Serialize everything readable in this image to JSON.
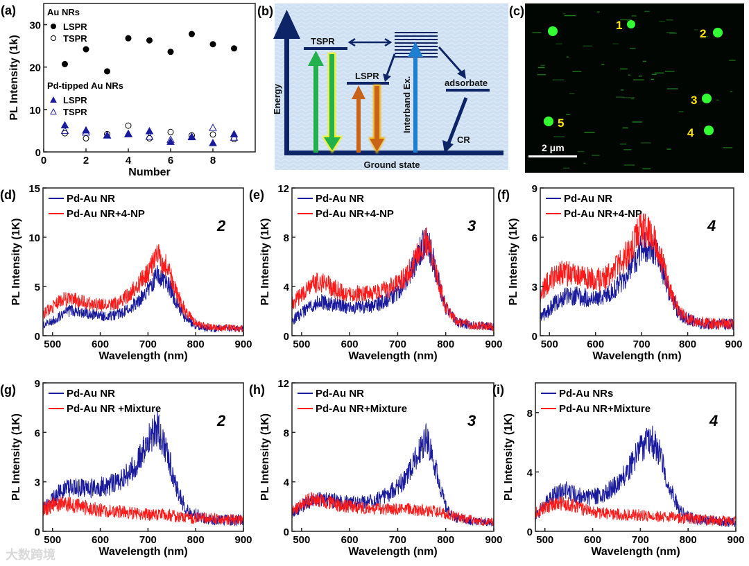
{
  "watermark": "大数跨境",
  "colors": {
    "blue": "#1a1a9c",
    "red": "#ff1a1a",
    "navy": "#0d2466",
    "green_spot": "#33ff33",
    "panel_b_bg": "#cfe0f3"
  },
  "panel_b": {
    "label": "(b)",
    "energy": "Energy",
    "tspr": "TSPR",
    "lspr": "LSPR",
    "interband": "Interband Ex.",
    "adsorbate": "adsorbate",
    "cr": "CR",
    "ground": "Ground state"
  },
  "panel_c": {
    "label": "(c)",
    "spots": [
      "1",
      "2",
      "3",
      "4",
      "5"
    ],
    "scale_bar": "2 μm"
  },
  "chart_data": [
    {
      "id": "a",
      "label": "(a)",
      "type": "scatter",
      "xlabel": "Number",
      "ylabel": "PL Intensity (1k)",
      "xlim": [
        0,
        10
      ],
      "ylim": [
        0,
        35
      ],
      "xticks": [
        0,
        2,
        4,
        6,
        8
      ],
      "yticks": [
        0,
        10,
        20,
        30
      ],
      "legend_groups": [
        {
          "title": "Au NRs",
          "entries": [
            "LSPR",
            "TSPR"
          ]
        },
        {
          "title": "Pd-tipped Au NRs",
          "entries": [
            "LSPR",
            "TSPR"
          ]
        }
      ],
      "series": [
        {
          "name": "Au NRs LSPR",
          "marker": "filled-circle",
          "color": "#000000",
          "x": [
            1,
            2,
            3,
            4,
            5,
            6,
            7,
            8,
            9
          ],
          "y": [
            20.7,
            24.2,
            19.0,
            26.8,
            26.3,
            23.6,
            27.8,
            25.4,
            24.4
          ]
        },
        {
          "name": "Au NRs TSPR",
          "marker": "open-circle",
          "color": "#000000",
          "x": [
            1,
            2,
            3,
            4,
            5,
            6,
            7,
            8,
            9
          ],
          "y": [
            4.4,
            3.2,
            4.2,
            6.2,
            3.2,
            4.7,
            3.9,
            4.1,
            3.0
          ]
        },
        {
          "name": "Pd-tipped Au NRs LSPR",
          "marker": "filled-triangle",
          "color": "#1a1a9c",
          "x": [
            1,
            2,
            3,
            4,
            5,
            6,
            7,
            8,
            9
          ],
          "y": [
            6.3,
            5.1,
            3.9,
            4.3,
            4.9,
            2.4,
            3.5,
            2.1,
            4.2
          ]
        },
        {
          "name": "Pd-tipped Au NRs TSPR",
          "marker": "open-triangle",
          "color": "#1a1a9c",
          "x": [
            1,
            2,
            3,
            4,
            5,
            6,
            7,
            8,
            9
          ],
          "y": [
            5.0,
            4.6,
            3.9,
            4.2,
            3.6,
            2.9,
            3.6,
            5.7,
            3.4
          ]
        }
      ]
    },
    {
      "id": "d",
      "label": "(d)",
      "type": "line",
      "tag": "2",
      "xlabel": "Wavelength (nm)",
      "ylabel": "PL Intensity (1K)",
      "xlim": [
        480,
        900
      ],
      "ylim": [
        0,
        15
      ],
      "xticks": [
        500,
        600,
        700,
        800,
        900
      ],
      "yticks": [
        0,
        5,
        10,
        15
      ],
      "x": [
        480,
        500,
        520,
        540,
        560,
        580,
        600,
        620,
        640,
        660,
        680,
        700,
        720,
        740,
        760,
        780,
        800,
        820,
        840,
        860,
        880,
        900
      ],
      "series": [
        {
          "name": "Pd-Au NR",
          "color": "#1a1a9c",
          "values": [
            1.0,
            1.5,
            2.2,
            2.6,
            2.4,
            2.2,
            2.0,
            2.0,
            2.2,
            2.7,
            3.6,
            4.8,
            6.2,
            5.5,
            3.2,
            1.7,
            1.0,
            0.8,
            0.7,
            0.8,
            0.7,
            0.7
          ]
        },
        {
          "name": "Pd-Au NR+4-NP",
          "color": "#ff1a1a",
          "values": [
            2.2,
            2.9,
            3.7,
            3.7,
            3.5,
            3.2,
            3.1,
            3.1,
            3.4,
            4.2,
            5.2,
            6.4,
            8.2,
            7.0,
            4.3,
            2.3,
            1.3,
            1.0,
            0.8,
            0.8,
            0.8,
            0.7
          ]
        }
      ]
    },
    {
      "id": "e",
      "label": "(e)",
      "type": "line",
      "tag": "3",
      "xlabel": "Wavelength (nm)",
      "ylabel": "PL Intensity (1K)",
      "xlim": [
        480,
        900
      ],
      "ylim": [
        0,
        12
      ],
      "xticks": [
        500,
        600,
        700,
        800,
        900
      ],
      "yticks": [
        0,
        4,
        8,
        12
      ],
      "x": [
        480,
        500,
        520,
        540,
        560,
        580,
        600,
        620,
        640,
        660,
        680,
        700,
        720,
        740,
        760,
        780,
        800,
        820,
        840,
        860,
        880,
        900
      ],
      "series": [
        {
          "name": "Pd-Au NR",
          "color": "#1a1a9c",
          "values": [
            1.2,
            1.8,
            2.5,
            2.8,
            2.6,
            2.4,
            2.3,
            2.3,
            2.4,
            2.6,
            3.0,
            3.6,
            4.6,
            6.3,
            8.0,
            5.2,
            2.2,
            1.2,
            0.9,
            0.8,
            0.8,
            0.7
          ]
        },
        {
          "name": "Pd-Au NR+4-NP",
          "color": "#ff1a1a",
          "values": [
            2.6,
            3.3,
            4.2,
            4.4,
            4.0,
            3.6,
            3.4,
            3.4,
            3.5,
            3.6,
            3.8,
            4.2,
            5.0,
            6.4,
            7.9,
            5.0,
            2.3,
            1.3,
            1.0,
            0.8,
            0.8,
            0.7
          ]
        }
      ]
    },
    {
      "id": "f",
      "label": "(f)",
      "type": "line",
      "tag": "4",
      "xlabel": "Wavelength (nm)",
      "ylabel": "PL Intensity (1K)",
      "xlim": [
        480,
        900
      ],
      "ylim": [
        0,
        9
      ],
      "xticks": [
        500,
        600,
        700,
        800,
        900
      ],
      "yticks": [
        0,
        3,
        6,
        9
      ],
      "x": [
        480,
        500,
        520,
        540,
        560,
        580,
        600,
        620,
        640,
        660,
        680,
        700,
        720,
        740,
        760,
        780,
        800,
        820,
        840,
        860,
        880,
        900
      ],
      "series": [
        {
          "name": "Pd-Au NR",
          "color": "#1a1a9c",
          "values": [
            1.1,
            1.6,
            2.2,
            2.4,
            2.4,
            2.3,
            2.3,
            2.4,
            2.8,
            3.4,
            4.3,
            5.3,
            5.6,
            4.5,
            2.6,
            1.4,
            1.0,
            0.8,
            0.7,
            0.7,
            0.7,
            0.7
          ]
        },
        {
          "name": "Pd-Au NR+4-NP",
          "color": "#ff1a1a",
          "values": [
            2.6,
            3.4,
            3.8,
            3.8,
            3.6,
            3.5,
            3.4,
            3.5,
            3.9,
            4.6,
            5.6,
            6.5,
            6.5,
            5.0,
            2.9,
            1.5,
            1.0,
            0.8,
            0.8,
            0.7,
            0.7,
            0.7
          ]
        }
      ]
    },
    {
      "id": "g",
      "label": "(g)",
      "type": "line",
      "tag": "2",
      "xlabel": "Wavelength (nm)",
      "ylabel": "PL Intensity (1K)",
      "xlim": [
        480,
        900
      ],
      "ylim": [
        0,
        9
      ],
      "xticks": [
        500,
        600,
        700,
        800,
        900
      ],
      "yticks": [
        0,
        3,
        6,
        9
      ],
      "x": [
        480,
        500,
        520,
        540,
        560,
        580,
        600,
        620,
        640,
        660,
        680,
        700,
        720,
        740,
        760,
        780,
        800,
        820,
        840,
        860,
        880,
        900
      ],
      "series": [
        {
          "name": "Pd-Au NR",
          "color": "#1a1a9c",
          "values": [
            1.3,
            1.9,
            2.5,
            2.6,
            2.6,
            2.6,
            2.7,
            2.8,
            3.1,
            3.5,
            4.3,
            5.5,
            6.3,
            4.8,
            2.6,
            1.3,
            1.0,
            0.8,
            0.7,
            0.7,
            0.7,
            0.7
          ]
        },
        {
          "name": "Pd-Au NR +Mixture",
          "color": "#ff1a1a",
          "values": [
            1.3,
            1.6,
            1.7,
            1.6,
            1.5,
            1.4,
            1.3,
            1.2,
            1.2,
            1.1,
            1.1,
            1.0,
            1.0,
            1.0,
            0.9,
            0.9,
            0.8,
            0.8,
            0.8,
            0.7,
            0.7,
            0.7
          ]
        }
      ]
    },
    {
      "id": "h",
      "label": "(h)",
      "type": "line",
      "tag": "3",
      "xlabel": "Wavelength (nm)",
      "ylabel": "PL Intensity (1K)",
      "xlim": [
        480,
        900
      ],
      "ylim": [
        0,
        12
      ],
      "xticks": [
        500,
        600,
        700,
        800,
        900
      ],
      "yticks": [
        0,
        4,
        8,
        12
      ],
      "x": [
        480,
        500,
        520,
        540,
        560,
        580,
        600,
        620,
        640,
        660,
        680,
        700,
        720,
        740,
        760,
        780,
        800,
        820,
        840,
        860,
        880,
        900
      ],
      "series": [
        {
          "name": "Pd-Au NR",
          "color": "#1a1a9c",
          "values": [
            1.5,
            2.0,
            2.5,
            2.6,
            2.5,
            2.4,
            2.3,
            2.3,
            2.4,
            2.6,
            3.0,
            3.6,
            4.5,
            6.0,
            7.6,
            5.0,
            2.0,
            1.1,
            0.9,
            0.8,
            0.8,
            0.7
          ]
        },
        {
          "name": "Pd-Au NR+Mixture",
          "color": "#ff1a1a",
          "values": [
            1.6,
            2.2,
            2.6,
            2.5,
            2.3,
            2.1,
            2.0,
            1.9,
            1.9,
            1.8,
            1.8,
            1.8,
            1.8,
            1.7,
            1.7,
            1.6,
            1.4,
            1.2,
            1.0,
            0.9,
            0.8,
            0.8
          ]
        }
      ]
    },
    {
      "id": "i",
      "label": "(i)",
      "type": "line",
      "tag": "4",
      "xlabel": "Wavelength (nm)",
      "ylabel": "PL Intensity (1K)",
      "xlim": [
        480,
        900
      ],
      "ylim": [
        0,
        10
      ],
      "xticks": [
        500,
        600,
        700,
        800,
        900
      ],
      "yticks": [
        0,
        4,
        8
      ],
      "x": [
        480,
        500,
        520,
        540,
        560,
        580,
        600,
        620,
        640,
        660,
        680,
        700,
        720,
        740,
        760,
        780,
        800,
        820,
        840,
        860,
        880,
        900
      ],
      "series": [
        {
          "name": "Pd-Au NRs",
          "color": "#1a1a9c",
          "values": [
            1.0,
            1.8,
            2.5,
            2.8,
            2.5,
            2.3,
            2.3,
            2.5,
            2.9,
            3.5,
            4.4,
            5.6,
            6.3,
            5.4,
            3.0,
            1.6,
            1.0,
            0.8,
            0.7,
            0.7,
            0.6,
            0.6
          ]
        },
        {
          "name": "Pd-Au NR+Mixture",
          "color": "#ff1a1a",
          "values": [
            1.3,
            1.6,
            1.9,
            1.9,
            1.7,
            1.5,
            1.3,
            1.2,
            1.2,
            1.1,
            1.1,
            1.1,
            1.0,
            1.0,
            1.0,
            0.9,
            0.9,
            0.8,
            0.8,
            0.7,
            0.7,
            0.7
          ]
        }
      ]
    }
  ]
}
